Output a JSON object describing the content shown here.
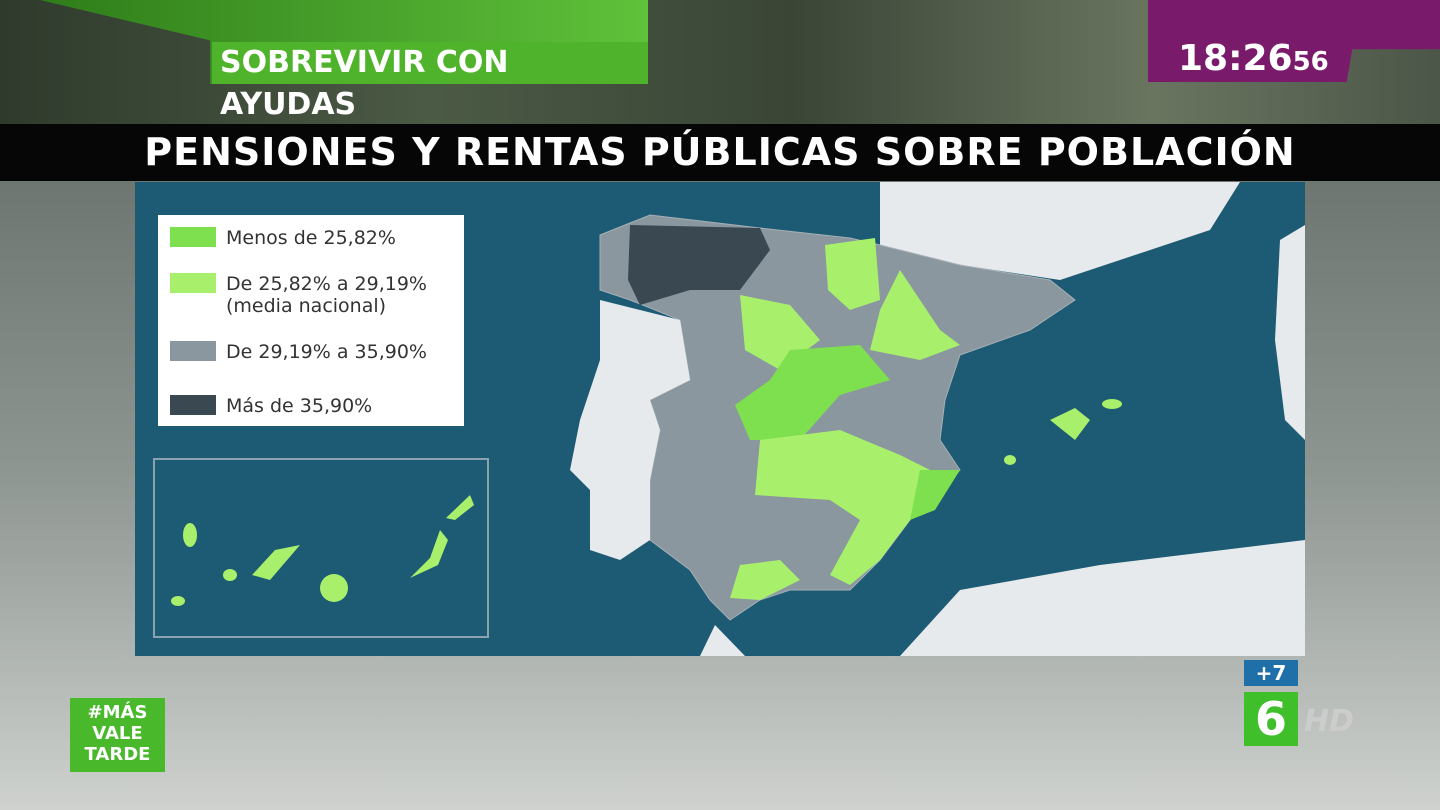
{
  "header": {
    "program_tag": "SOBREVIVIR CON AYUDAS",
    "clock": {
      "hm": "18:26",
      "s": "56"
    }
  },
  "title": "PENSIONES Y RENTAS PÚBLICAS SOBRE POBLACIÓN",
  "legend": [
    {
      "label": "Menos de 25,82%",
      "color": "#7ee04e"
    },
    {
      "label": "De 25,82% a 29,19%",
      "note": "(media nacional)",
      "color": "#a8f06c"
    },
    {
      "label": "De 29,19% a 35,90%",
      "color": "#8a979f"
    },
    {
      "label": "Más de 35,90%",
      "color": "#3a4852"
    }
  ],
  "logo": {
    "lines": [
      "#MÁS",
      "VALE",
      "TARDE"
    ]
  },
  "channel": {
    "plus": "+7",
    "number": "6",
    "hd": "HD"
  }
}
